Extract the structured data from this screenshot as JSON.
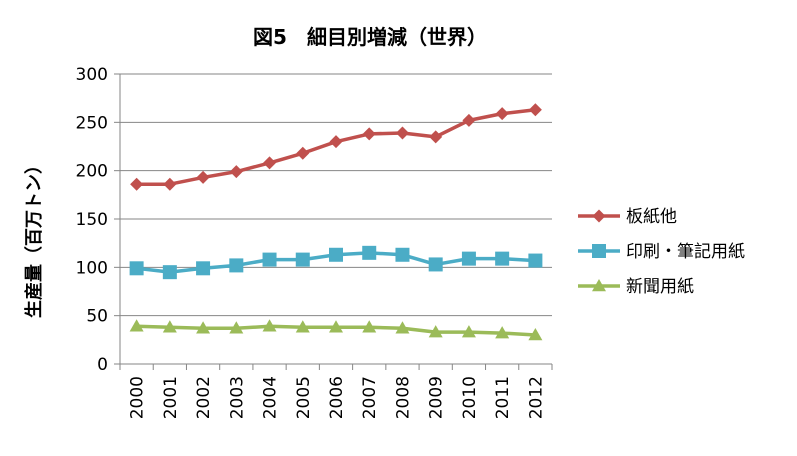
{
  "chart_data": {
    "type": "line",
    "title": "図5　細目別増減（世界）",
    "xlabel": "",
    "ylabel": "生産量（百万トン）",
    "ylim": [
      0,
      300
    ],
    "yticks": [
      0,
      50,
      100,
      150,
      200,
      250,
      300
    ],
    "grid": true,
    "legend": "right",
    "categories": [
      "2000",
      "2001",
      "2002",
      "2003",
      "2004",
      "2005",
      "2006",
      "2007",
      "2008",
      "2009",
      "2010",
      "2011",
      "2012"
    ],
    "series": [
      {
        "name": "板紙他",
        "color": "#C0504D",
        "marker": "diamond",
        "values": [
          186,
          186,
          193,
          199,
          208,
          218,
          230,
          238,
          239,
          235,
          252,
          259,
          263
        ]
      },
      {
        "name": "印刷・筆記用紙",
        "color": "#4BACC6",
        "marker": "square",
        "values": [
          99,
          95,
          99,
          102,
          108,
          108,
          113,
          115,
          113,
          103,
          109,
          109,
          107
        ]
      },
      {
        "name": "新聞用紙",
        "color": "#9BBB59",
        "marker": "triangle",
        "values": [
          39,
          38,
          37,
          37,
          39,
          38,
          38,
          38,
          37,
          33,
          33,
          32,
          30
        ]
      }
    ]
  }
}
